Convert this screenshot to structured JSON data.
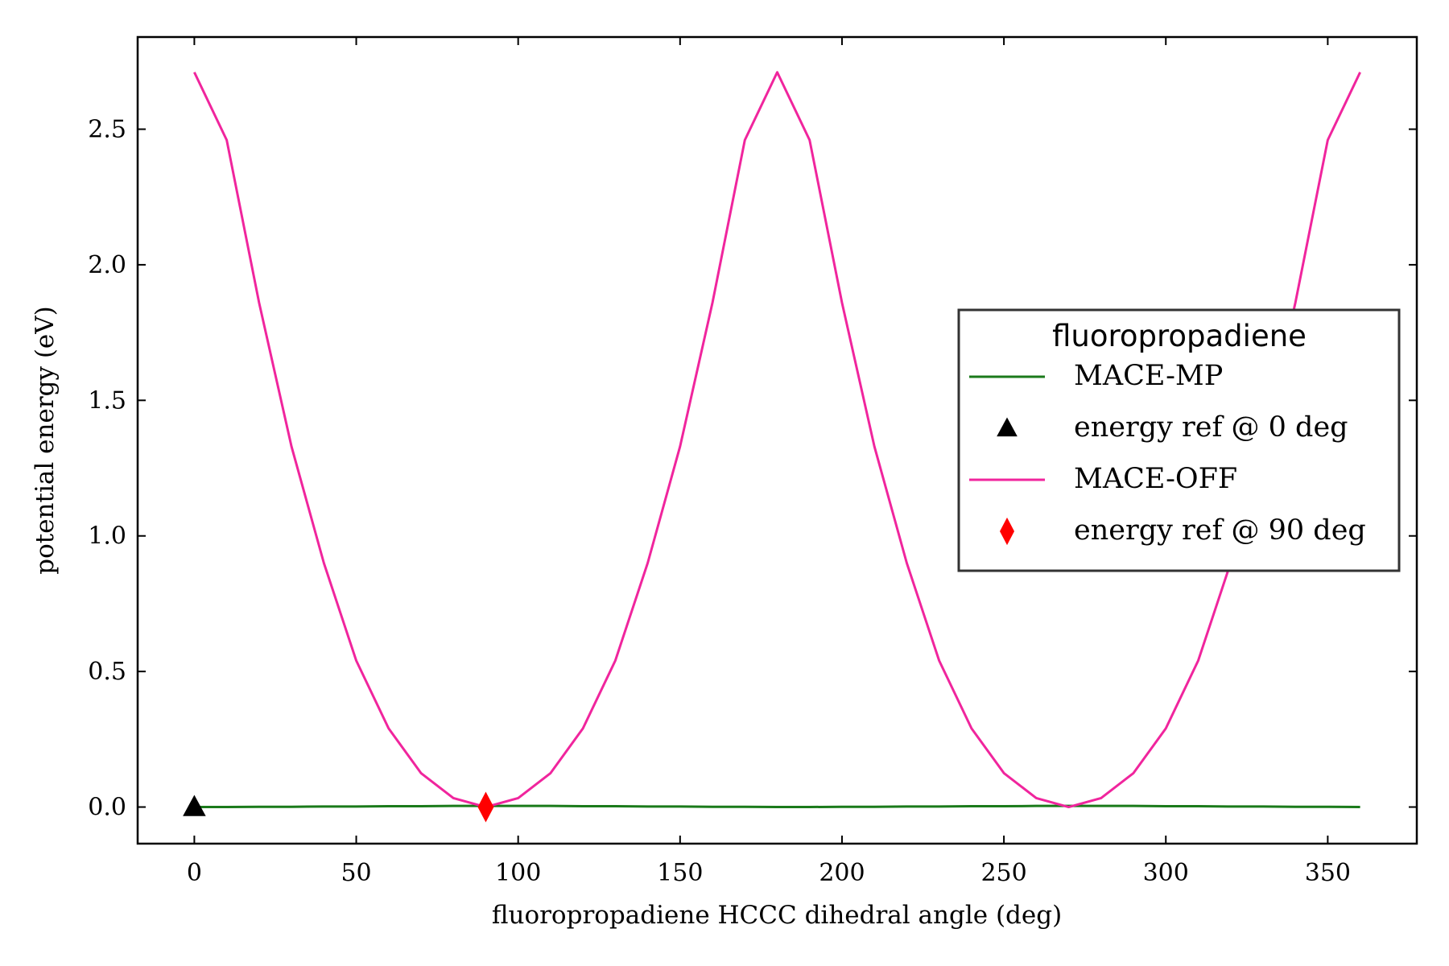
{
  "chart_data": {
    "type": "line",
    "xlabel": "fluoropropadiene HCCC dihedral angle (deg)",
    "ylabel": "potential energy (eV)",
    "xlim": [
      -17.5,
      377.5
    ],
    "ylim": [
      -0.135,
      2.84
    ],
    "xticks": [
      0,
      50,
      100,
      150,
      200,
      250,
      300,
      350
    ],
    "yticks": [
      0.0,
      0.5,
      1.0,
      1.5,
      2.0,
      2.5
    ],
    "xtick_labels": [
      "0",
      "50",
      "100",
      "150",
      "200",
      "250",
      "300",
      "350"
    ],
    "ytick_labels": [
      "0.0",
      "0.5",
      "1.0",
      "1.5",
      "2.0",
      "2.5"
    ],
    "grid": false,
    "legend": {
      "title": "fluoropropadiene",
      "placement": "center-right",
      "entries": [
        "MACE-MP",
        "energy ref @ 0 deg",
        "MACE-OFF",
        "energy ref @ 90 deg"
      ]
    },
    "series": [
      {
        "name": "MACE-MP",
        "kind": "line",
        "color": "#1a7a1a",
        "x": [
          0,
          10,
          20,
          30,
          40,
          50,
          60,
          70,
          80,
          90,
          100,
          110,
          120,
          130,
          140,
          150,
          160,
          170,
          180,
          190,
          200,
          210,
          220,
          230,
          240,
          250,
          260,
          270,
          280,
          290,
          300,
          310,
          320,
          330,
          340,
          350,
          360
        ],
        "y": [
          0.0,
          0.0,
          0.001,
          0.001,
          0.002,
          0.002,
          0.003,
          0.003,
          0.004,
          0.004,
          0.004,
          0.004,
          0.003,
          0.003,
          0.002,
          0.002,
          0.001,
          0.001,
          0.0,
          0.0,
          0.001,
          0.001,
          0.002,
          0.002,
          0.003,
          0.003,
          0.004,
          0.004,
          0.004,
          0.004,
          0.003,
          0.003,
          0.002,
          0.002,
          0.001,
          0.001,
          0.0
        ]
      },
      {
        "name": "energy ref @ 0 deg",
        "kind": "marker",
        "marker": "triangle",
        "color": "#000000",
        "x": [
          0
        ],
        "y": [
          0.0
        ]
      },
      {
        "name": "MACE-OFF",
        "kind": "line",
        "color": "#f0259d",
        "x": [
          0,
          10,
          20,
          30,
          40,
          50,
          60,
          70,
          80,
          90,
          100,
          110,
          120,
          130,
          140,
          150,
          160,
          170,
          180,
          190,
          200,
          210,
          220,
          230,
          240,
          250,
          260,
          270,
          280,
          290,
          300,
          310,
          320,
          330,
          340,
          350,
          360
        ],
        "y": [
          2.71,
          2.46,
          1.86,
          1.33,
          0.9,
          0.54,
          0.29,
          0.125,
          0.033,
          0.0,
          0.033,
          0.125,
          0.29,
          0.54,
          0.9,
          1.33,
          1.86,
          2.46,
          2.71,
          2.46,
          1.86,
          1.33,
          0.9,
          0.54,
          0.29,
          0.125,
          0.033,
          0.0,
          0.033,
          0.125,
          0.29,
          0.54,
          0.9,
          1.33,
          1.86,
          2.46,
          2.71
        ]
      },
      {
        "name": "energy ref @ 90 deg",
        "kind": "marker",
        "marker": "diamond",
        "color": "#ff0000",
        "x": [
          90
        ],
        "y": [
          0.0
        ]
      }
    ]
  }
}
